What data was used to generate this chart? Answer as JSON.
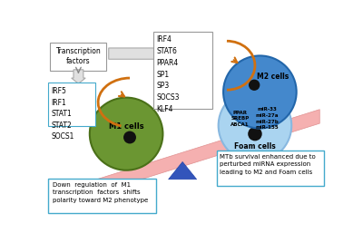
{
  "bg_color": "#ffffff",
  "m1_factors": [
    "IRF5",
    "IRF1",
    "STAT1",
    "STAT2",
    "SOCS1"
  ],
  "m2_factors": [
    "IRF4",
    "STAT6",
    "PPAR4",
    "SP1",
    "SP3",
    "SOCS3",
    "KLF4"
  ],
  "foam_labels_left": [
    "PPAR",
    "SREBP",
    "ABCA1"
  ],
  "foam_labels_right": [
    "miR-33",
    "miR-27a",
    "miR-27b",
    "miR-155"
  ],
  "seesaw_color": "#f5b0b0",
  "seesaw_edge": "#e09090",
  "triangle_color": "#3355bb",
  "m1_color": "#6b9632",
  "m1_edge": "#4a7018",
  "m2_color": "#4488cc",
  "m2_edge": "#2266aa",
  "foam_color": "#aad4f0",
  "foam_edge": "#88b8e0",
  "orange_arrow": "#d07010",
  "box_edge_gray": "#999999",
  "box_edge_blue": "#44aacc"
}
